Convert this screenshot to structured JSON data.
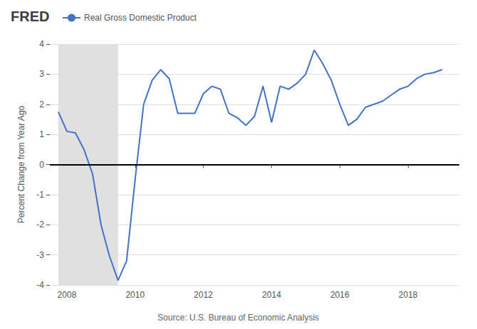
{
  "chart_data": {
    "type": "line",
    "title": "FRED",
    "ylabel": "Percent Change from Year Ago",
    "source": "Source: U.S. Bureau of Economic Analysis",
    "x": [
      2007.75,
      2008.0,
      2008.25,
      2008.5,
      2008.75,
      2009.0,
      2009.25,
      2009.5,
      2009.75,
      2010.0,
      2010.25,
      2010.5,
      2010.75,
      2011.0,
      2011.25,
      2011.5,
      2011.75,
      2012.0,
      2012.25,
      2012.5,
      2012.75,
      2013.0,
      2013.25,
      2013.5,
      2013.75,
      2014.0,
      2014.25,
      2014.5,
      2014.75,
      2015.0,
      2015.25,
      2015.5,
      2015.75,
      2016.0,
      2016.25,
      2016.5,
      2016.75,
      2017.0,
      2017.25,
      2017.5,
      2017.75,
      2018.0,
      2018.25,
      2018.5,
      2018.75,
      2019.0
    ],
    "series": [
      {
        "name": "Real Gross Domestic Product",
        "color": "#4472c4",
        "values": [
          1.75,
          1.1,
          1.05,
          0.5,
          -0.3,
          -2.0,
          -3.05,
          -3.85,
          -3.2,
          -0.5,
          2.0,
          2.8,
          3.15,
          2.85,
          1.7,
          1.7,
          1.7,
          2.35,
          2.6,
          2.5,
          1.7,
          1.55,
          1.3,
          1.6,
          2.6,
          1.4,
          2.6,
          2.5,
          2.7,
          3.0,
          3.8,
          3.35,
          2.8,
          2.0,
          1.3,
          1.5,
          1.9,
          2.0,
          2.1,
          2.3,
          2.5,
          2.6,
          2.85,
          3.0,
          3.05,
          3.15
        ]
      }
    ],
    "recession": {
      "x": [
        2007.75,
        2009.5
      ],
      "color": "#e0e0e0"
    },
    "hline": {
      "y": 0,
      "color": "#000000"
    },
    "xlim": [
      2007.5,
      2019.5
    ],
    "xticks": [
      2008,
      2010,
      2012,
      2014,
      2016,
      2018
    ],
    "ylim": [
      -4,
      4
    ],
    "yticks": [
      -4,
      -3,
      -2,
      -1,
      0,
      1,
      2,
      3,
      4
    ],
    "grid": true,
    "legend": "top-left"
  }
}
